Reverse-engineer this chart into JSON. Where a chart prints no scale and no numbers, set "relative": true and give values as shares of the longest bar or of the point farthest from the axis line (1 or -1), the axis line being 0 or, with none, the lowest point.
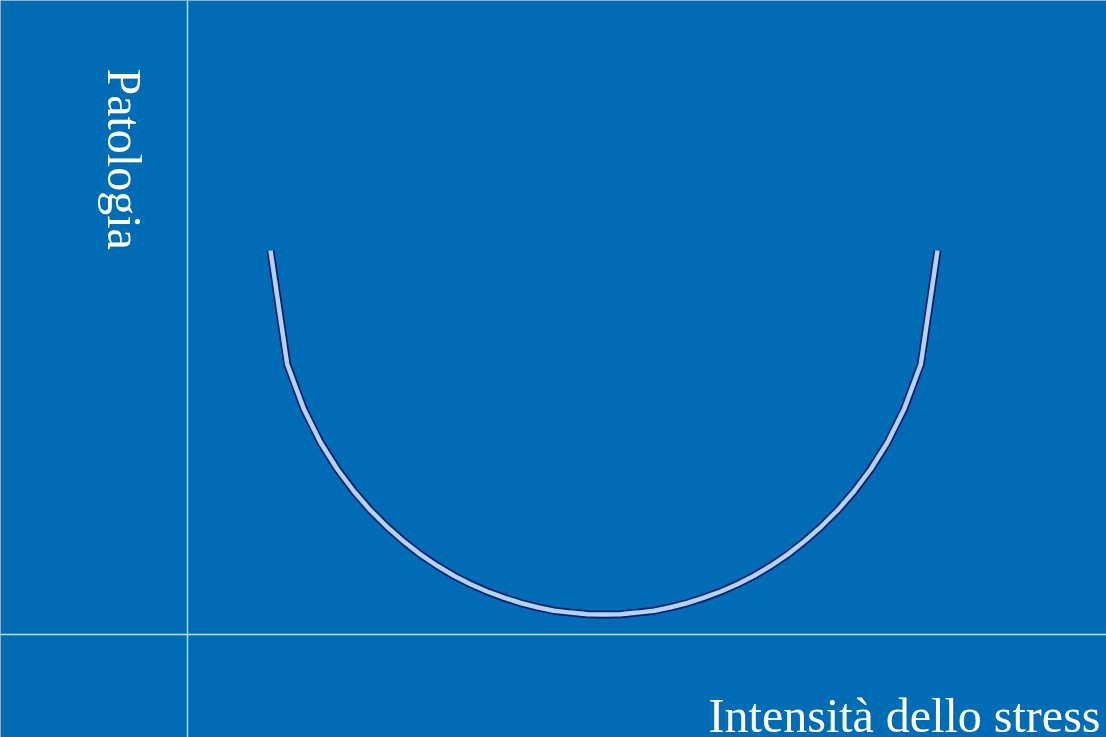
{
  "chart_data": {
    "type": "line",
    "relative": true,
    "xlabel": "Intensità dello stress",
    "ylabel": "Patologia",
    "categories": [
      null,
      null,
      null,
      null,
      null,
      null,
      null,
      null,
      null,
      null,
      null,
      null,
      null,
      null,
      null,
      null,
      null,
      null,
      null,
      null,
      null,
      null,
      null,
      null,
      null,
      null,
      null,
      null,
      null,
      null,
      null,
      null,
      null,
      null,
      null,
      null,
      null,
      null,
      null,
      null,
      null
    ],
    "series": [
      {
        "color": "#b3d4f5",
        "values": [
          1.0,
          0.704,
          0.587,
          0.5,
          0.431,
          0.373,
          0.323,
          0.28,
          0.242,
          0.208,
          0.179,
          0.153,
          0.131,
          0.112,
          0.096,
          0.082,
          0.071,
          0.062,
          0.057,
          0.053,
          0.052,
          0.053,
          0.057,
          0.062,
          0.071,
          0.082,
          0.096,
          0.112,
          0.131,
          0.153,
          0.179,
          0.208,
          0.242,
          0.28,
          0.323,
          0.373,
          0.431,
          0.5,
          0.587,
          0.704,
          1.0
        ]
      }
    ],
    "marker": "none",
    "line_style": "solid"
  }
}
